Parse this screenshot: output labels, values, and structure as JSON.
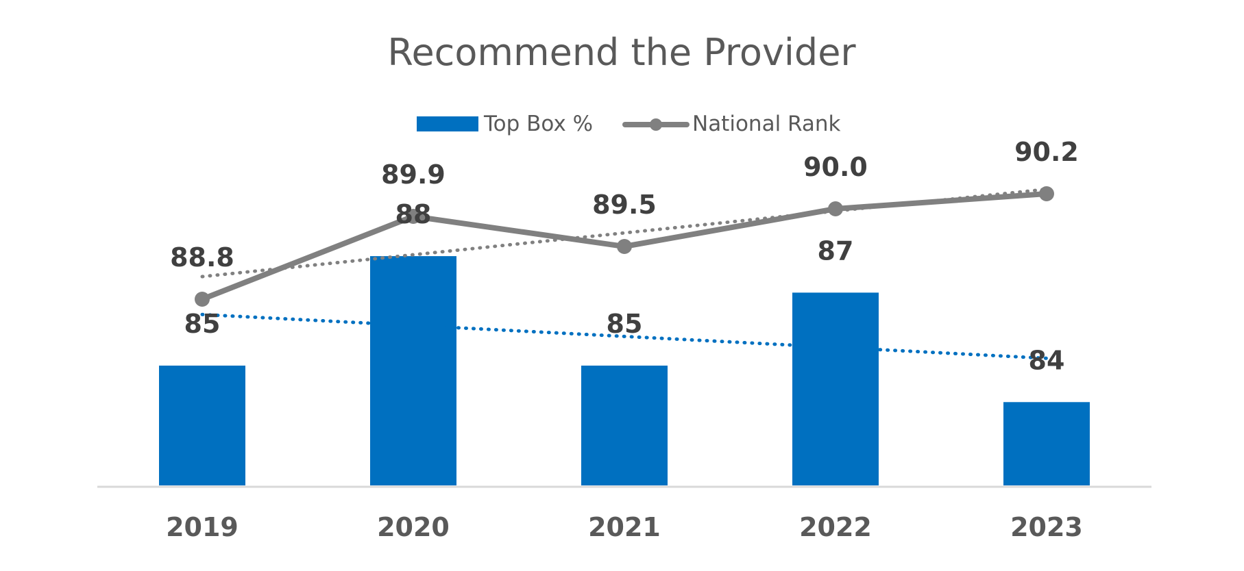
{
  "chart_data": {
    "type": "bar",
    "title": "Recommend the Provider",
    "categories": [
      "2019",
      "2020",
      "2021",
      "2022",
      "2023"
    ],
    "series": [
      {
        "name": "Top Box %",
        "type": "bar",
        "values": [
          85,
          88,
          85,
          87,
          84
        ],
        "labels": [
          "85",
          "88",
          "85",
          "87",
          "84"
        ],
        "color": "#0070C0",
        "trendline": "dotted"
      },
      {
        "name": "National Rank",
        "type": "line",
        "values": [
          88.8,
          89.9,
          89.5,
          90.0,
          90.2
        ],
        "labels": [
          "88.8",
          "89.9",
          "89.5",
          "90.0",
          "90.2"
        ],
        "color": "#808080",
        "marker": "circle",
        "trendline": "dotted"
      }
    ],
    "legend": "top-center",
    "grid": false,
    "xlabel": "",
    "ylabel": ""
  }
}
